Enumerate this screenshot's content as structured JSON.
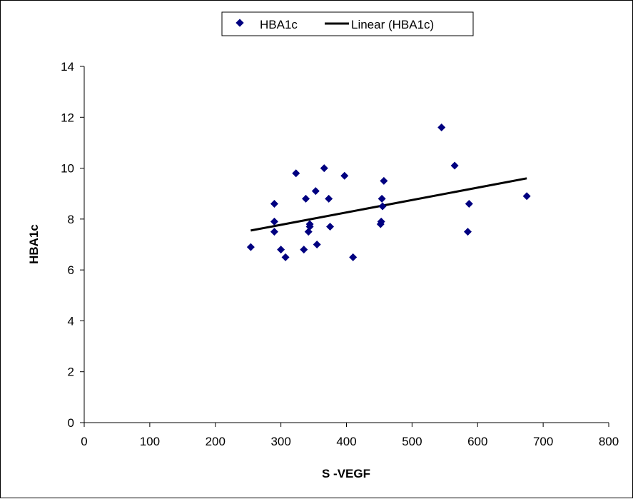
{
  "chart_data": {
    "type": "scatter",
    "xlabel": "S -VEGF",
    "ylabel": "HBA1c",
    "xlim": [
      0,
      800
    ],
    "ylim": [
      0,
      14
    ],
    "xticks": [
      "0",
      "100",
      "200",
      "300",
      "400",
      "500",
      "600",
      "700",
      "800"
    ],
    "yticks": [
      "0",
      "2",
      "4",
      "6",
      "8",
      "10",
      "12",
      "14"
    ],
    "grid": false,
    "legend_position": "top",
    "legend": {
      "series_label": "HBA1c",
      "trend_label": "Linear (HBA1c)"
    },
    "series": [
      {
        "name": "HBA1c",
        "color": "#000080",
        "marker": "diamond",
        "points": [
          [
            254,
            6.9
          ],
          [
            290,
            8.6
          ],
          [
            290,
            7.9
          ],
          [
            290,
            7.5
          ],
          [
            300,
            6.8
          ],
          [
            307,
            6.5
          ],
          [
            323,
            9.8
          ],
          [
            335,
            6.8
          ],
          [
            338,
            8.8
          ],
          [
            342,
            7.5
          ],
          [
            344,
            7.7
          ],
          [
            344,
            7.8
          ],
          [
            353,
            9.1
          ],
          [
            355,
            7.0
          ],
          [
            366,
            10.0
          ],
          [
            373,
            8.8
          ],
          [
            375,
            7.7
          ],
          [
            397,
            9.7
          ],
          [
            410,
            6.5
          ],
          [
            452,
            7.8
          ],
          [
            453,
            7.9
          ],
          [
            454,
            8.8
          ],
          [
            455,
            8.5
          ],
          [
            457,
            9.5
          ],
          [
            545,
            11.6
          ],
          [
            565,
            10.1
          ],
          [
            585,
            7.5
          ],
          [
            587,
            8.6
          ],
          [
            675,
            8.9
          ]
        ]
      }
    ],
    "trendline": {
      "name": "Linear (HBA1c)",
      "type": "linear",
      "color": "#000000",
      "x": [
        254,
        675
      ],
      "y": [
        7.55,
        9.6
      ]
    }
  }
}
